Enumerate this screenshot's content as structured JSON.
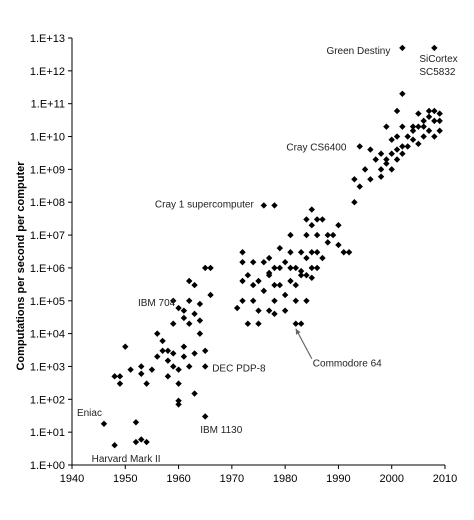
{
  "chart_data": {
    "type": "scatter",
    "title": "",
    "xlabel": "",
    "ylabel": "Computations per second per computer",
    "xlim": [
      1940,
      2010
    ],
    "ylim_log10": [
      0,
      13
    ],
    "log_y": true,
    "grid": false,
    "marker": "diamond",
    "color": "#000000",
    "x_ticks": [
      1940,
      1950,
      1960,
      1970,
      1980,
      1990,
      2000,
      2010
    ],
    "y_ticks": [
      {
        "exp": 0,
        "label": "1.E+00"
      },
      {
        "exp": 1,
        "label": "1.E+01"
      },
      {
        "exp": 2,
        "label": "1.E+02"
      },
      {
        "exp": 3,
        "label": "1.E+03"
      },
      {
        "exp": 4,
        "label": "1.E+04"
      },
      {
        "exp": 5,
        "label": "1.E+05"
      },
      {
        "exp": 6,
        "label": "1.E+06"
      },
      {
        "exp": 7,
        "label": "1.E+07"
      },
      {
        "exp": 8,
        "label": "1.E+08"
      },
      {
        "exp": 9,
        "label": "1.E+09"
      },
      {
        "exp": 10,
        "label": "1.E+10"
      },
      {
        "exp": 11,
        "label": "1.E+11"
      },
      {
        "exp": 12,
        "label": "1.E+12"
      },
      {
        "exp": 13,
        "label": "1.E+13"
      }
    ],
    "annotations": [
      {
        "text": "Eniac",
        "x": 1946,
        "y": 18
      },
      {
        "text": "Harvard Mark II",
        "x": 1948,
        "y": 4
      },
      {
        "text": "IBM 704",
        "x": 1957,
        "y": 12000
      },
      {
        "text": "DEC PDP-8",
        "x": 1965,
        "y": 1000
      },
      {
        "text": "IBM 1130",
        "x": 1965,
        "y": 25
      },
      {
        "text": "Cray 1 supercomputer",
        "x": 1976,
        "y": 85000000
      },
      {
        "text": "Commodore 64",
        "x": 1982,
        "y": 20000
      },
      {
        "text": "Cray CS6400",
        "x": 1993,
        "y": 5000000000
      },
      {
        "text": "Green Destiny",
        "x": 2002,
        "y": 5000000000000
      },
      {
        "text": "SiCortex",
        "x": 2008,
        "y": 5000000000000
      },
      {
        "text": "SC5832",
        "x": 2008,
        "y": 5000000000000
      }
    ],
    "points": [
      [
        1946,
        18
      ],
      [
        1948,
        4
      ],
      [
        1949,
        300
      ],
      [
        1949,
        500
      ],
      [
        1948,
        500
      ],
      [
        1950,
        4000
      ],
      [
        1951,
        800
      ],
      [
        1952,
        5
      ],
      [
        1952,
        20
      ],
      [
        1953,
        6
      ],
      [
        1953,
        600
      ],
      [
        1953,
        1000
      ],
      [
        1954,
        5
      ],
      [
        1954,
        300
      ],
      [
        1955,
        800
      ],
      [
        1956,
        2000
      ],
      [
        1956,
        10000
      ],
      [
        1957,
        6000
      ],
      [
        1957,
        3000
      ],
      [
        1958,
        500
      ],
      [
        1958,
        1500
      ],
      [
        1958,
        3000
      ],
      [
        1959,
        1000
      ],
      [
        1959,
        2500
      ],
      [
        1959,
        20000
      ],
      [
        1959,
        100000
      ],
      [
        1960,
        70
      ],
      [
        1960,
        90
      ],
      [
        1960,
        300
      ],
      [
        1960,
        800
      ],
      [
        1960,
        60000
      ],
      [
        1961,
        2000
      ],
      [
        1961,
        4000
      ],
      [
        1961,
        30000
      ],
      [
        1961,
        50000
      ],
      [
        1962,
        1000
      ],
      [
        1962,
        20000
      ],
      [
        1962,
        100000
      ],
      [
        1962,
        400000
      ],
      [
        1963,
        150
      ],
      [
        1963,
        2500
      ],
      [
        1963,
        40000
      ],
      [
        1963,
        300000
      ],
      [
        1964,
        25000
      ],
      [
        1964,
        80000
      ],
      [
        1964,
        10000
      ],
      [
        1965,
        30
      ],
      [
        1965,
        1000
      ],
      [
        1965,
        3000
      ],
      [
        1965,
        1000000
      ],
      [
        1966,
        150000
      ],
      [
        1966,
        1000000
      ],
      [
        1971,
        60000
      ],
      [
        1972,
        100000
      ],
      [
        1972,
        400000
      ],
      [
        1972,
        1500000
      ],
      [
        1972,
        3000000
      ],
      [
        1973,
        20000
      ],
      [
        1973,
        600000
      ],
      [
        1974,
        100000
      ],
      [
        1974,
        300000
      ],
      [
        1974,
        1500000
      ],
      [
        1975,
        400000
      ],
      [
        1975,
        20000
      ],
      [
        1975,
        50000
      ],
      [
        1976,
        80000000
      ],
      [
        1976,
        1500000
      ],
      [
        1976,
        200000
      ],
      [
        1977,
        700000
      ],
      [
        1977,
        50000
      ],
      [
        1977,
        2000000
      ],
      [
        1977,
        600000
      ],
      [
        1978,
        80000000
      ],
      [
        1978,
        100000
      ],
      [
        1978,
        1000000
      ],
      [
        1978,
        300000
      ],
      [
        1978,
        40000
      ],
      [
        1979,
        1000000
      ],
      [
        1979,
        300000
      ],
      [
        1979,
        4000000
      ],
      [
        1980,
        150000
      ],
      [
        1980,
        50000
      ],
      [
        1980,
        1500000
      ],
      [
        1981,
        1000000
      ],
      [
        1981,
        3000000
      ],
      [
        1981,
        10000000
      ],
      [
        1981,
        400000
      ],
      [
        1982,
        20000
      ],
      [
        1982,
        1000000
      ],
      [
        1982,
        300000
      ],
      [
        1982,
        100000
      ],
      [
        1983,
        20000
      ],
      [
        1983,
        600000
      ],
      [
        1983,
        3000000
      ],
      [
        1983,
        800000
      ],
      [
        1984,
        100000
      ],
      [
        1984,
        2000000
      ],
      [
        1984,
        10000000
      ],
      [
        1984,
        30000000
      ],
      [
        1984,
        600000
      ],
      [
        1985,
        1000000
      ],
      [
        1985,
        3000000
      ],
      [
        1985,
        20000000
      ],
      [
        1985,
        60000000
      ],
      [
        1985,
        500000
      ],
      [
        1986,
        30000000
      ],
      [
        1986,
        3000000
      ],
      [
        1986,
        1000000
      ],
      [
        1986,
        10000000
      ],
      [
        1987,
        30000000
      ],
      [
        1987,
        2000000
      ],
      [
        1988,
        10000000
      ],
      [
        1988,
        6000000
      ],
      [
        1989,
        10000000
      ],
      [
        1990,
        5000000
      ],
      [
        1990,
        20000000
      ],
      [
        1991,
        3000000
      ],
      [
        1992,
        3000000
      ],
      [
        1993,
        100000000
      ],
      [
        1993,
        500000000
      ],
      [
        1994,
        300000000
      ],
      [
        1994,
        5000000000
      ],
      [
        1995,
        1000000000
      ],
      [
        1996,
        4000000000
      ],
      [
        1996,
        500000000
      ],
      [
        1997,
        2000000000
      ],
      [
        1998,
        600000000
      ],
      [
        1998,
        1000000000
      ],
      [
        1998,
        3000000000
      ],
      [
        1999,
        20000000000
      ],
      [
        1999,
        2000000000
      ],
      [
        1999,
        1500000000
      ],
      [
        2000,
        3000000000
      ],
      [
        2000,
        1000000000
      ],
      [
        2000,
        8000000000
      ],
      [
        2001,
        4000000000
      ],
      [
        2001,
        2000000000
      ],
      [
        2001,
        60000000000
      ],
      [
        2001,
        10000000000
      ],
      [
        2002,
        5000000000000
      ],
      [
        2002,
        5000000000
      ],
      [
        2002,
        200000000000
      ],
      [
        2002,
        3000000000
      ],
      [
        2002,
        20000000000
      ],
      [
        2003,
        5000000000
      ],
      [
        2003,
        10000000000
      ],
      [
        2004,
        8000000000
      ],
      [
        2004,
        20000000000
      ],
      [
        2004,
        15000000000
      ],
      [
        2005,
        20000000000
      ],
      [
        2005,
        50000000000
      ],
      [
        2005,
        6000000000
      ],
      [
        2006,
        10000000000
      ],
      [
        2006,
        30000000000
      ],
      [
        2006,
        20000000000
      ],
      [
        2007,
        60000000000
      ],
      [
        2007,
        15000000000
      ],
      [
        2007,
        40000000000
      ],
      [
        2008,
        5000000000000
      ],
      [
        2008,
        30000000000
      ],
      [
        2008,
        10000000000
      ],
      [
        2008,
        60000000000
      ],
      [
        2009,
        30000000000
      ],
      [
        2009,
        15000000000
      ],
      [
        2009,
        50000000000
      ]
    ]
  }
}
